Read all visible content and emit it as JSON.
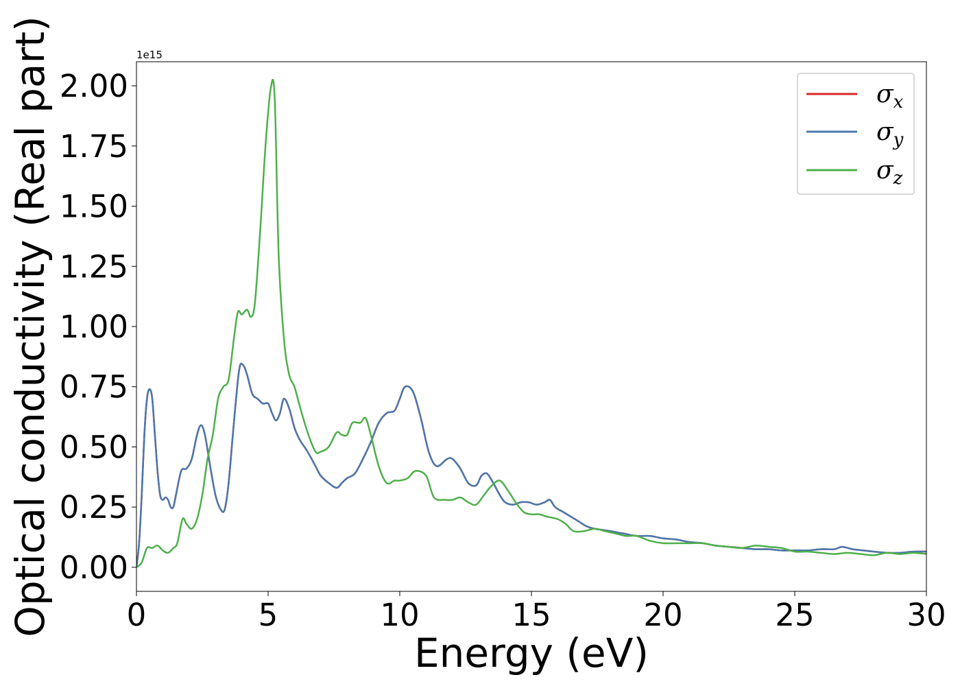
{
  "chart_data": {
    "type": "line",
    "xlabel": "Energy (eV)",
    "ylabel": "Optical conductivity (Real part)",
    "y_offset_label": "1e15",
    "xlim": [
      0,
      30
    ],
    "ylim": [
      -0.1,
      2.1
    ],
    "x_ticks": [
      0,
      5,
      10,
      15,
      20,
      25,
      30
    ],
    "x_tick_labels": [
      "0",
      "5",
      "10",
      "15",
      "20",
      "25",
      "30"
    ],
    "y_ticks": [
      0.0,
      0.25,
      0.5,
      0.75,
      1.0,
      1.25,
      1.5,
      1.75,
      2.0
    ],
    "y_tick_labels": [
      "0.00",
      "0.25",
      "0.50",
      "0.75",
      "1.00",
      "1.25",
      "1.50",
      "1.75",
      "2.00"
    ],
    "grid": false,
    "legend_position": "top-right",
    "series": [
      {
        "name": "σx",
        "legend_base": "σ",
        "legend_sub": "x",
        "color": "#d62728",
        "x": [
          0,
          0.1,
          0.2,
          0.3,
          0.4,
          0.5,
          0.6,
          0.7,
          0.8,
          0.9,
          1.0,
          1.1,
          1.2,
          1.3,
          1.4,
          1.5,
          1.7,
          1.9,
          2.1,
          2.3,
          2.45,
          2.6,
          2.8,
          3.0,
          3.2,
          3.35,
          3.5,
          3.7,
          3.9,
          4.05,
          4.2,
          4.4,
          4.6,
          4.8,
          5.0,
          5.15,
          5.3,
          5.45,
          5.6,
          5.8,
          6.0,
          6.2,
          6.5,
          6.8,
          7.0,
          7.3,
          7.6,
          7.8,
          8.0,
          8.3,
          8.6,
          8.9,
          9.2,
          9.5,
          9.8,
          10.0,
          10.2,
          10.5,
          10.8,
          11.1,
          11.4,
          11.8,
          12.0,
          12.3,
          12.6,
          12.9,
          13.1,
          13.3,
          13.5,
          13.8,
          14.0,
          14.3,
          14.6,
          14.9,
          15.2,
          15.5,
          15.7,
          15.9,
          16.2,
          16.5,
          16.8,
          17.1,
          17.4,
          17.7,
          18.0,
          18.5,
          19.0,
          19.5,
          20.0,
          20.5,
          21.0,
          21.5,
          22.0,
          22.5,
          23.0,
          23.5,
          24.0,
          24.5,
          25.0,
          25.5,
          26.0,
          26.5,
          26.8,
          27.2,
          27.6,
          28.0,
          28.5,
          29.0,
          29.5,
          30.0
        ],
        "values": [
          0,
          0.1,
          0.3,
          0.55,
          0.7,
          0.74,
          0.7,
          0.55,
          0.4,
          0.3,
          0.28,
          0.29,
          0.28,
          0.25,
          0.25,
          0.3,
          0.4,
          0.41,
          0.45,
          0.55,
          0.59,
          0.55,
          0.42,
          0.3,
          0.24,
          0.24,
          0.35,
          0.6,
          0.82,
          0.84,
          0.8,
          0.72,
          0.7,
          0.68,
          0.68,
          0.64,
          0.61,
          0.64,
          0.7,
          0.66,
          0.58,
          0.53,
          0.48,
          0.42,
          0.38,
          0.35,
          0.33,
          0.35,
          0.37,
          0.39,
          0.45,
          0.52,
          0.6,
          0.64,
          0.65,
          0.7,
          0.75,
          0.73,
          0.62,
          0.48,
          0.42,
          0.45,
          0.45,
          0.41,
          0.35,
          0.34,
          0.38,
          0.39,
          0.36,
          0.3,
          0.27,
          0.26,
          0.27,
          0.27,
          0.26,
          0.27,
          0.28,
          0.25,
          0.23,
          0.21,
          0.19,
          0.17,
          0.16,
          0.155,
          0.15,
          0.14,
          0.13,
          0.13,
          0.12,
          0.115,
          0.105,
          0.1,
          0.09,
          0.085,
          0.08,
          0.075,
          0.075,
          0.07,
          0.07,
          0.07,
          0.075,
          0.075,
          0.085,
          0.075,
          0.07,
          0.065,
          0.06,
          0.06,
          0.065,
          0.065
        ]
      },
      {
        "name": "σy",
        "legend_base": "σ",
        "legend_sub": "y",
        "color": "#4a78ac",
        "x": [
          0,
          0.1,
          0.2,
          0.3,
          0.4,
          0.5,
          0.6,
          0.7,
          0.8,
          0.9,
          1.0,
          1.1,
          1.2,
          1.3,
          1.4,
          1.5,
          1.7,
          1.9,
          2.1,
          2.3,
          2.45,
          2.6,
          2.8,
          3.0,
          3.2,
          3.35,
          3.5,
          3.7,
          3.9,
          4.05,
          4.2,
          4.4,
          4.6,
          4.8,
          5.0,
          5.15,
          5.3,
          5.45,
          5.6,
          5.8,
          6.0,
          6.2,
          6.5,
          6.8,
          7.0,
          7.3,
          7.6,
          7.8,
          8.0,
          8.3,
          8.6,
          8.9,
          9.2,
          9.5,
          9.8,
          10.0,
          10.2,
          10.5,
          10.8,
          11.1,
          11.4,
          11.8,
          12.0,
          12.3,
          12.6,
          12.9,
          13.1,
          13.3,
          13.5,
          13.8,
          14.0,
          14.3,
          14.6,
          14.9,
          15.2,
          15.5,
          15.7,
          15.9,
          16.2,
          16.5,
          16.8,
          17.1,
          17.4,
          17.7,
          18.0,
          18.5,
          19.0,
          19.5,
          20.0,
          20.5,
          21.0,
          21.5,
          22.0,
          22.5,
          23.0,
          23.5,
          24.0,
          24.5,
          25.0,
          25.5,
          26.0,
          26.5,
          26.8,
          27.2,
          27.6,
          28.0,
          28.5,
          29.0,
          29.5,
          30.0
        ],
        "values": [
          0,
          0.1,
          0.3,
          0.55,
          0.7,
          0.74,
          0.7,
          0.55,
          0.4,
          0.3,
          0.28,
          0.29,
          0.28,
          0.25,
          0.25,
          0.3,
          0.4,
          0.41,
          0.45,
          0.55,
          0.59,
          0.55,
          0.42,
          0.3,
          0.24,
          0.24,
          0.35,
          0.6,
          0.82,
          0.84,
          0.8,
          0.72,
          0.7,
          0.68,
          0.68,
          0.64,
          0.61,
          0.64,
          0.7,
          0.66,
          0.58,
          0.53,
          0.48,
          0.42,
          0.38,
          0.35,
          0.33,
          0.35,
          0.37,
          0.39,
          0.45,
          0.52,
          0.6,
          0.64,
          0.65,
          0.7,
          0.75,
          0.73,
          0.62,
          0.48,
          0.42,
          0.45,
          0.45,
          0.41,
          0.35,
          0.34,
          0.38,
          0.39,
          0.36,
          0.3,
          0.27,
          0.26,
          0.27,
          0.27,
          0.26,
          0.27,
          0.28,
          0.25,
          0.23,
          0.21,
          0.19,
          0.17,
          0.16,
          0.155,
          0.15,
          0.14,
          0.13,
          0.13,
          0.12,
          0.115,
          0.105,
          0.1,
          0.09,
          0.085,
          0.08,
          0.075,
          0.075,
          0.07,
          0.07,
          0.07,
          0.075,
          0.075,
          0.085,
          0.075,
          0.07,
          0.065,
          0.06,
          0.06,
          0.065,
          0.065
        ]
      },
      {
        "name": "σz",
        "legend_base": "σ",
        "legend_sub": "z",
        "color": "#4daf4a",
        "x": [
          0,
          0.2,
          0.4,
          0.6,
          0.8,
          1.0,
          1.2,
          1.4,
          1.55,
          1.75,
          1.9,
          2.1,
          2.3,
          2.5,
          2.7,
          2.9,
          3.1,
          3.3,
          3.5,
          3.7,
          3.85,
          4.0,
          4.2,
          4.35,
          4.5,
          4.7,
          4.9,
          5.1,
          5.25,
          5.4,
          5.6,
          5.8,
          6.0,
          6.2,
          6.5,
          6.8,
          7.0,
          7.3,
          7.6,
          7.8,
          8.0,
          8.2,
          8.5,
          8.7,
          8.9,
          9.2,
          9.5,
          9.8,
          10.0,
          10.3,
          10.6,
          11.0,
          11.3,
          11.7,
          12.0,
          12.3,
          12.6,
          12.9,
          13.2,
          13.5,
          13.8,
          14.1,
          14.4,
          14.7,
          15.0,
          15.3,
          15.6,
          16.0,
          16.3,
          16.6,
          17.0,
          17.4,
          17.8,
          18.2,
          18.6,
          19.0,
          19.5,
          20.0,
          20.5,
          21.0,
          21.5,
          22.0,
          22.5,
          23.0,
          23.5,
          24.0,
          24.5,
          25.0,
          25.5,
          26.0,
          26.5,
          27.0,
          27.5,
          28.0,
          28.5,
          29.0,
          29.5,
          30.0
        ],
        "values": [
          0,
          0.02,
          0.08,
          0.08,
          0.09,
          0.07,
          0.06,
          0.08,
          0.1,
          0.2,
          0.18,
          0.16,
          0.2,
          0.3,
          0.45,
          0.55,
          0.7,
          0.75,
          0.78,
          0.95,
          1.06,
          1.05,
          1.07,
          1.04,
          1.1,
          1.4,
          1.75,
          1.99,
          1.95,
          1.3,
          0.95,
          0.8,
          0.75,
          0.67,
          0.56,
          0.48,
          0.48,
          0.5,
          0.56,
          0.55,
          0.55,
          0.6,
          0.6,
          0.62,
          0.55,
          0.42,
          0.35,
          0.36,
          0.36,
          0.37,
          0.4,
          0.38,
          0.29,
          0.28,
          0.28,
          0.29,
          0.27,
          0.26,
          0.3,
          0.34,
          0.36,
          0.32,
          0.27,
          0.23,
          0.22,
          0.22,
          0.21,
          0.2,
          0.18,
          0.15,
          0.15,
          0.16,
          0.15,
          0.14,
          0.13,
          0.13,
          0.11,
          0.1,
          0.1,
          0.1,
          0.1,
          0.09,
          0.085,
          0.08,
          0.09,
          0.085,
          0.08,
          0.065,
          0.065,
          0.06,
          0.055,
          0.06,
          0.055,
          0.05,
          0.06,
          0.055,
          0.06,
          0.055
        ]
      }
    ]
  }
}
